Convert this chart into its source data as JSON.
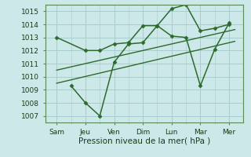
{
  "bg_color": "#cde8e8",
  "grid_color": "#a8cccc",
  "line_color": "#2d6a2d",
  "xlabel": "Pression niveau de la mer( hPa )",
  "xticks": [
    "Sam",
    "Jeu",
    "Ven",
    "Dim",
    "Lun",
    "Mar",
    "Mer"
  ],
  "xtick_positions": [
    0,
    1,
    2,
    3,
    4,
    5,
    6
  ],
  "ylim": [
    1006.5,
    1015.5
  ],
  "yticks": [
    1007,
    1008,
    1009,
    1010,
    1011,
    1012,
    1013,
    1014,
    1015
  ],
  "series": [
    {
      "x": [
        0,
        1,
        1.5,
        2,
        2.5,
        3,
        3.5,
        4,
        4.5,
        5,
        5.5,
        6
      ],
      "y": [
        1013.0,
        1012.0,
        1012.0,
        1012.5,
        1012.6,
        1013.9,
        1013.9,
        1015.2,
        1015.5,
        1013.5,
        1013.7,
        1014.0
      ],
      "marker": "D",
      "markersize": 2.5,
      "linewidth": 1.1
    },
    {
      "x": [
        0.5,
        1,
        1.5,
        2,
        2.5,
        3,
        3.5,
        4,
        4.5,
        5,
        5.5,
        6
      ],
      "y": [
        1009.3,
        1008.0,
        1007.0,
        1011.1,
        1012.5,
        1012.6,
        1013.9,
        1013.1,
        1013.0,
        1009.3,
        1012.1,
        1014.1
      ],
      "marker": "D",
      "markersize": 2.5,
      "linewidth": 1.1
    },
    {
      "x": [
        0,
        6.2
      ],
      "y": [
        1009.5,
        1012.7
      ],
      "marker": null,
      "linewidth": 1.0
    },
    {
      "x": [
        0,
        6.2
      ],
      "y": [
        1010.5,
        1013.6
      ],
      "marker": null,
      "linewidth": 1.0
    }
  ]
}
